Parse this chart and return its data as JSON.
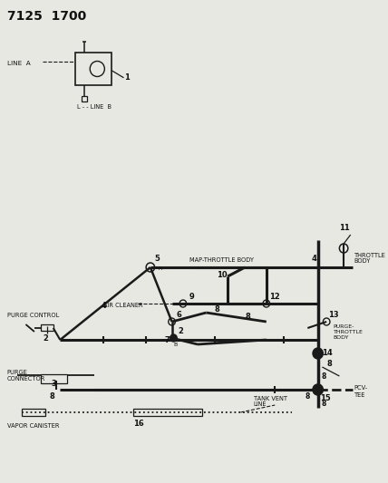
{
  "bg_color": "#e8e8e3",
  "lc": "#1a1a1a",
  "tc": "#111111",
  "title": "7125  1700",
  "label_line_a": "LINE  A",
  "label_line_b": "L - - LINE  B",
  "label_map_throttle": "MAP-THROTTLE BODY",
  "label_air_cleaner": "AIR CLEANER",
  "label_throttle_body": "THROTTLE\nBODY",
  "label_purge_throttle": "PURGE-\nTHROTTLE\nBODY",
  "label_purge_control": "PURGE CONTROL",
  "label_purge_connector": "PURGE\nCONNECTOR",
  "label_vapor_canister": "VAPOR CANISTER",
  "label_tank_vent": "TANK VENT\nLINE",
  "label_pcv_tee": "PCV-\nTEE"
}
